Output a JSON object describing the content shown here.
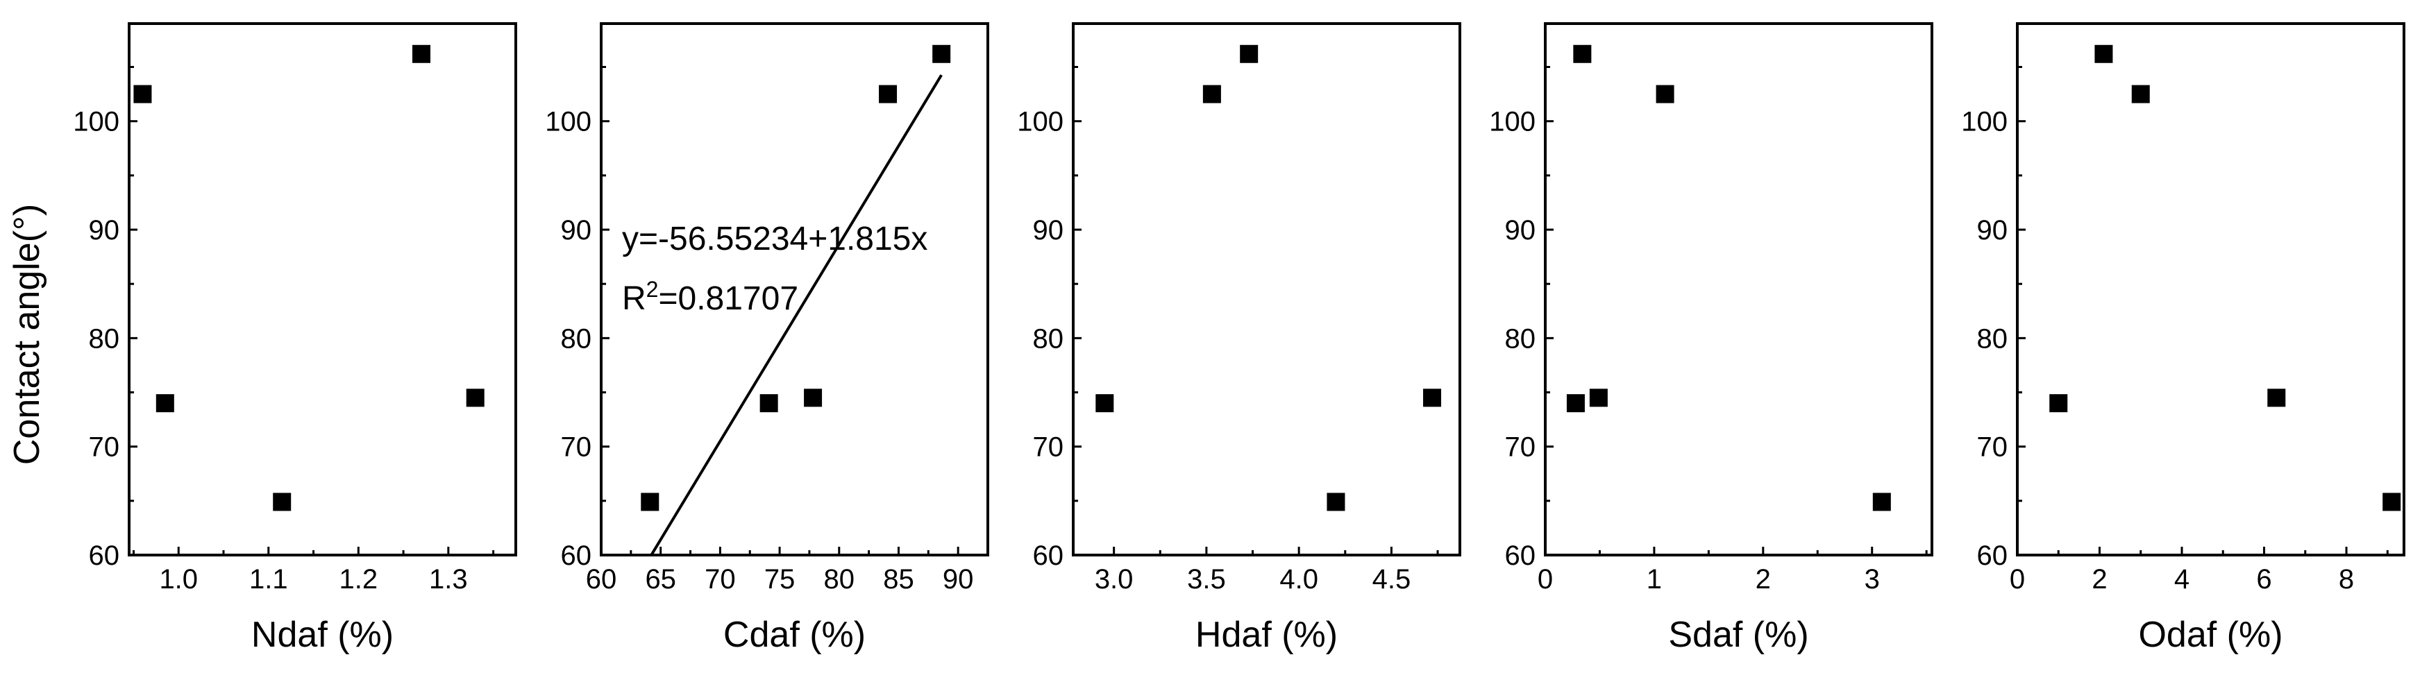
{
  "figure": {
    "y_label": "Contact angle(°)"
  },
  "chart_data": [
    {
      "type": "scatter",
      "xlabel": "Ndaf (%)",
      "ylabel": "Contact angle(°)",
      "xlim": [
        0.945,
        1.375
      ],
      "ylim": [
        60,
        109
      ],
      "xticks": [
        1.0,
        1.1,
        1.2,
        1.3
      ],
      "xtick_labels": [
        "1.0",
        "1.1",
        "1.2",
        "1.3"
      ],
      "yticks": [
        60,
        70,
        80,
        90,
        100
      ],
      "ytick_labels": [
        "60",
        "70",
        "80",
        "90",
        "100"
      ],
      "points": [
        {
          "x": 0.96,
          "y": 102.5
        },
        {
          "x": 0.985,
          "y": 74.0
        },
        {
          "x": 1.115,
          "y": 64.9
        },
        {
          "x": 1.27,
          "y": 106.2
        },
        {
          "x": 1.33,
          "y": 74.5
        }
      ]
    },
    {
      "type": "scatter",
      "xlabel": "Cdaf (%)",
      "ylabel": "Contact angle(°)",
      "xlim": [
        60,
        92.5
      ],
      "ylim": [
        60,
        109
      ],
      "xticks": [
        60,
        65,
        70,
        75,
        80,
        85,
        90
      ],
      "xtick_labels": [
        "60",
        "65",
        "70",
        "75",
        "80",
        "85",
        "90"
      ],
      "yticks": [
        60,
        70,
        80,
        90,
        100
      ],
      "ytick_labels": [
        "60",
        "70",
        "80",
        "90",
        "100"
      ],
      "points": [
        {
          "x": 64.1,
          "y": 64.9
        },
        {
          "x": 74.1,
          "y": 74.0
        },
        {
          "x": 77.8,
          "y": 74.5
        },
        {
          "x": 84.1,
          "y": 102.5
        },
        {
          "x": 88.6,
          "y": 106.2
        }
      ],
      "fit": {
        "intercept": -56.55234,
        "slope": 1.815,
        "x_range": [
          64.2,
          88.6
        ],
        "equation_text": "y=-56.55234+1.815x",
        "r2_prefix": "R",
        "r2_sup": "2",
        "r2_value": "=0.81707"
      }
    },
    {
      "type": "scatter",
      "xlabel": "Hdaf (%)",
      "ylabel": "Contact angle(°)",
      "xlim": [
        2.78,
        4.87
      ],
      "ylim": [
        60,
        109
      ],
      "xticks": [
        3.0,
        3.5,
        4.0,
        4.5
      ],
      "xtick_labels": [
        "3.0",
        "3.5",
        "4.0",
        "4.5"
      ],
      "yticks": [
        60,
        70,
        80,
        90,
        100
      ],
      "ytick_labels": [
        "60",
        "70",
        "80",
        "90",
        "100"
      ],
      "points": [
        {
          "x": 2.95,
          "y": 74.0
        },
        {
          "x": 3.53,
          "y": 102.5
        },
        {
          "x": 3.73,
          "y": 106.2
        },
        {
          "x": 4.2,
          "y": 64.9
        },
        {
          "x": 4.72,
          "y": 74.5
        }
      ]
    },
    {
      "type": "scatter",
      "xlabel": "Sdaf (%)",
      "ylabel": "Contact angle(°)",
      "xlim": [
        0,
        3.55
      ],
      "ylim": [
        60,
        109
      ],
      "xticks": [
        0,
        1,
        2,
        3
      ],
      "xtick_labels": [
        "0",
        "1",
        "2",
        "3"
      ],
      "yticks": [
        60,
        70,
        80,
        90,
        100
      ],
      "ytick_labels": [
        "60",
        "70",
        "80",
        "90",
        "100"
      ],
      "points": [
        {
          "x": 0.28,
          "y": 74.0
        },
        {
          "x": 0.34,
          "y": 106.2
        },
        {
          "x": 0.49,
          "y": 74.5
        },
        {
          "x": 1.1,
          "y": 102.5
        },
        {
          "x": 3.09,
          "y": 64.9
        }
      ]
    },
    {
      "type": "scatter",
      "xlabel": "Odaf (%)",
      "ylabel": "Contact angle(°)",
      "xlim": [
        0,
        9.4
      ],
      "ylim": [
        60,
        109
      ],
      "xticks": [
        0,
        2,
        4,
        6,
        8
      ],
      "xtick_labels": [
        "0",
        "2",
        "4",
        "6",
        "8"
      ],
      "yticks": [
        60,
        70,
        80,
        90,
        100
      ],
      "ytick_labels": [
        "60",
        "70",
        "80",
        "90",
        "100"
      ],
      "points": [
        {
          "x": 1.0,
          "y": 74.0
        },
        {
          "x": 2.1,
          "y": 106.2
        },
        {
          "x": 3.0,
          "y": 102.5
        },
        {
          "x": 6.3,
          "y": 74.5
        },
        {
          "x": 9.1,
          "y": 64.9
        }
      ]
    }
  ]
}
